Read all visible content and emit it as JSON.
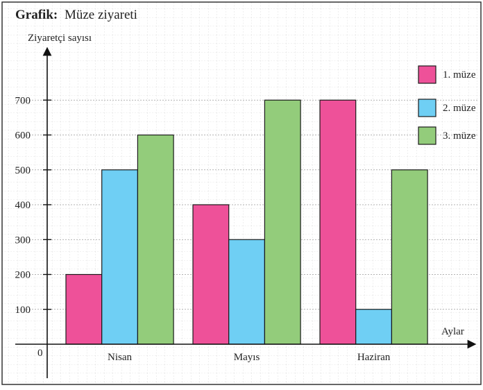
{
  "header": {
    "title_prefix": "Grafik:",
    "title": "Müze ziyareti"
  },
  "chart_data": {
    "type": "bar",
    "ylabel": "Ziyaretçi sayısı",
    "xlabel": "Aylar",
    "origin_label": "0",
    "categories": [
      "Nisan",
      "Mayıs",
      "Haziran"
    ],
    "series": [
      {
        "name": "1. müze",
        "color": "#ee5199",
        "values": [
          200,
          400,
          700
        ]
      },
      {
        "name": "2. müze",
        "color": "#6fcff4",
        "values": [
          500,
          300,
          100
        ]
      },
      {
        "name": "3. müze",
        "color": "#93cc7b",
        "values": [
          600,
          700,
          500
        ]
      }
    ],
    "ylim": [
      0,
      800
    ],
    "yticks": [
      100,
      200,
      300,
      400,
      500,
      600,
      700
    ],
    "grid": true,
    "legend_position": "top-right"
  }
}
